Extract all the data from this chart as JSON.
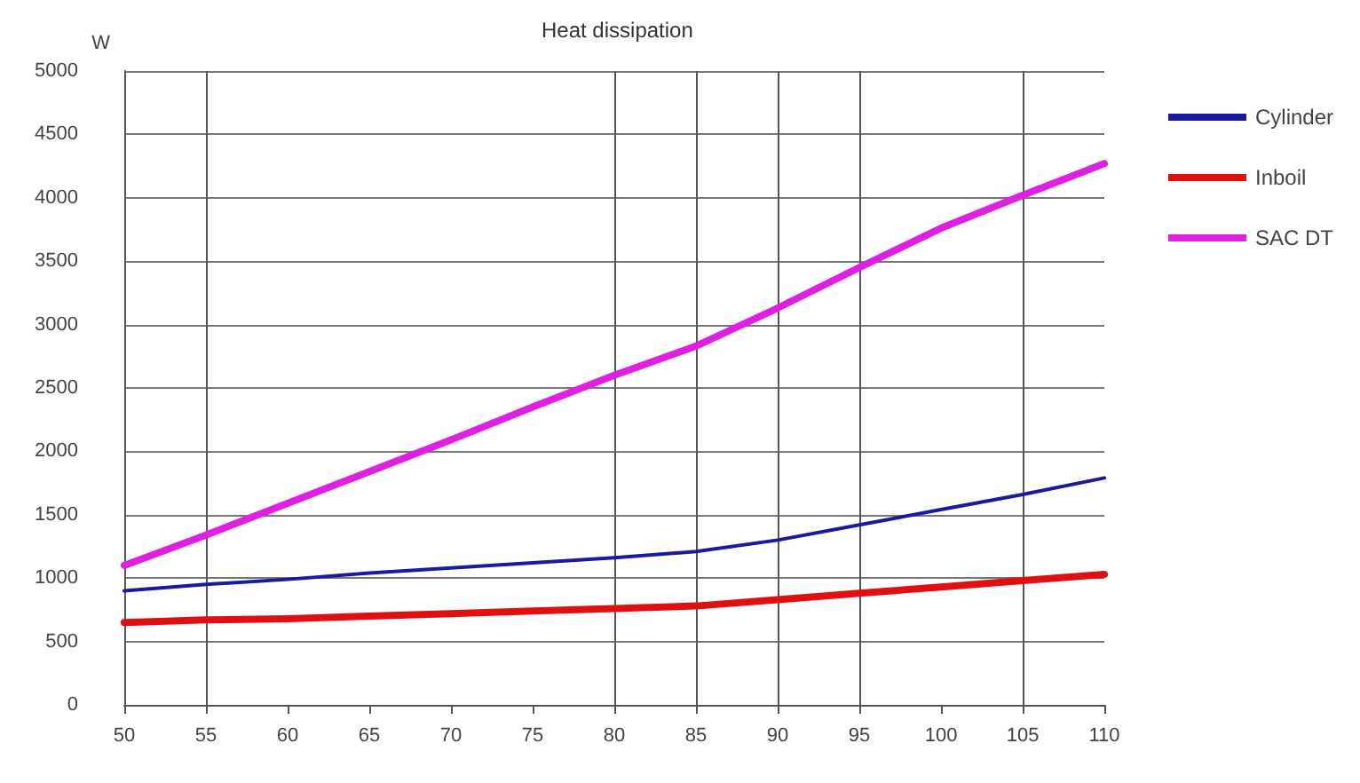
{
  "chart_data": {
    "type": "line",
    "title": "Heat dissipation",
    "ylabel": "W",
    "x": [
      50,
      55,
      60,
      65,
      70,
      75,
      80,
      85,
      90,
      95,
      100,
      105,
      110
    ],
    "series": [
      {
        "name": "Cylinder",
        "color": "#1a1aa0",
        "values": [
          900,
          950,
          990,
          1040,
          1080,
          1120,
          1160,
          1210,
          1300,
          1420,
          1540,
          1660,
          1790
        ]
      },
      {
        "name": "Inboil",
        "color": "#e01010",
        "values": [
          650,
          670,
          680,
          700,
          720,
          740,
          760,
          780,
          830,
          880,
          930,
          980,
          1030
        ]
      },
      {
        "name": "SAC DT",
        "color": "#e020e0",
        "values": [
          1100,
          1340,
          1590,
          1840,
          2090,
          2350,
          2600,
          2830,
          3130,
          3450,
          3760,
          4020,
          4270
        ]
      }
    ],
    "xlim": [
      50,
      110
    ],
    "xticks": [
      50,
      55,
      60,
      65,
      70,
      75,
      80,
      85,
      90,
      95,
      100,
      105,
      110
    ],
    "ylim": [
      0,
      5000
    ],
    "yticks": [
      0,
      500,
      1000,
      1500,
      2000,
      2500,
      3000,
      3500,
      4000,
      4500,
      5000
    ],
    "grid": "y",
    "legend": "right",
    "marker": "none",
    "line_style": "solid",
    "ref_lines": [
      {
        "axis": "x",
        "value": 55
      },
      {
        "axis": "x",
        "value": 80
      },
      {
        "axis": "x",
        "value": 85
      },
      {
        "axis": "x",
        "value": 90
      },
      {
        "axis": "x",
        "value": 95
      },
      {
        "axis": "x",
        "value": 105
      }
    ]
  }
}
